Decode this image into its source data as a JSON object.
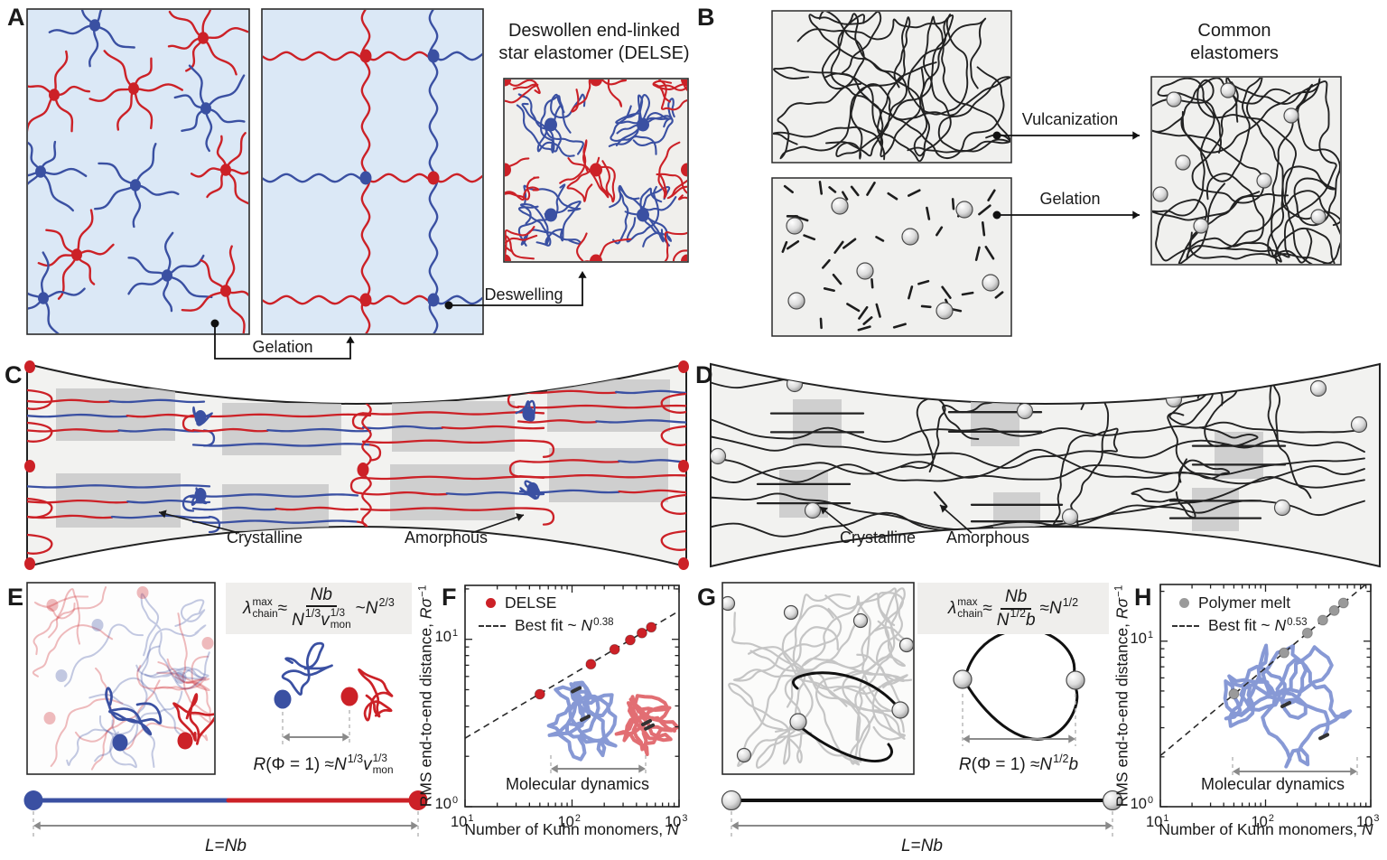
{
  "colors": {
    "red": "#cc2127",
    "blue": "#3a50a2",
    "light_blue_bg": "#dbe8f6",
    "panel_bg": "#f0f0ee",
    "specimen_bg": "#f2f2f0",
    "crystal_gray": "#c9c9c9",
    "chain_gray": "#c5c5c5",
    "md_blue": "#8193d3",
    "md_red": "#e0666b",
    "ink": "#1a1a1a"
  },
  "panels": {
    "a": {
      "letter": "A",
      "title": [
        "Deswollen end-linked",
        "star elastomer (DELSE)"
      ],
      "gelation": "Gelation",
      "deswelling": "Deswelling"
    },
    "b": {
      "letter": "B",
      "title": [
        "Common",
        "elastomers"
      ],
      "vulcanization": "Vulcanization",
      "gelation": "Gelation"
    },
    "c": {
      "letter": "C",
      "crystalline": "Crystalline",
      "amorphous": "Amorphous"
    },
    "d": {
      "letter": "D",
      "crystalline": "Crystalline",
      "amorphous": "Amorphous"
    },
    "e": {
      "letter": "E",
      "lambda_formula": [
        {
          "t": "λ",
          "i": true,
          "sup": "max",
          "sub": "chain"
        },
        {
          "t": " ≈ "
        },
        {
          "frac": {
            "num": [
              {
                "t": "Nb",
                "i": true
              }
            ],
            "den": [
              {
                "t": "N",
                "i": true,
                "sup": "1/3"
              },
              {
                "t": "v",
                "i": true,
                "sup": "1/3",
                "sub": "mon"
              }
            ]
          }
        },
        {
          "t": " ~ "
        },
        {
          "t": "N",
          "i": true,
          "sup": "2/3"
        }
      ],
      "r_formula": [
        {
          "t": "R",
          "i": true
        },
        {
          "t": "(Φ = 1) ≈ "
        },
        {
          "t": "N",
          "i": true,
          "sup": "1/3"
        },
        {
          "t": " "
        },
        {
          "t": "v",
          "i": true,
          "sup": "1/3",
          "sub": "mon"
        }
      ],
      "length_formula": [
        {
          "t": "L",
          "i": true
        },
        {
          "t": " = "
        },
        {
          "t": "Nb",
          "i": true
        }
      ]
    },
    "f": {
      "letter": "F"
    },
    "g": {
      "letter": "G",
      "lambda_formula": [
        {
          "t": "λ",
          "i": true,
          "sup": "max",
          "sub": "chain"
        },
        {
          "t": " ≈ "
        },
        {
          "frac": {
            "num": [
              {
                "t": "Nb",
                "i": true
              }
            ],
            "den": [
              {
                "t": "N",
                "i": true,
                "sup": "1/2"
              },
              {
                "t": "b",
                "i": true
              }
            ]
          }
        },
        {
          "t": " ≈ "
        },
        {
          "t": "N",
          "i": true,
          "sup": "1/2"
        }
      ],
      "r_formula": [
        {
          "t": "R",
          "i": true
        },
        {
          "t": "(Φ = 1) ≈ "
        },
        {
          "t": "N",
          "i": true,
          "sup": "1/2"
        },
        {
          "t": " "
        },
        {
          "t": "b",
          "i": true
        }
      ],
      "length_formula": [
        {
          "t": "L",
          "i": true
        },
        {
          "t": " = "
        },
        {
          "t": "Nb",
          "i": true
        }
      ]
    },
    "h": {
      "letter": "H"
    }
  },
  "chart_data": [
    {
      "id": "F",
      "type": "scatter",
      "log_x": true,
      "log_y": true,
      "title": "",
      "xlabel": "Number of Kuhn monomers, N",
      "ylabel": "RMS end-to-end distance, Rσ⁻¹",
      "xlabel_tokens": [
        {
          "t": "Number of Kuhn monomers, "
        },
        {
          "t": "N",
          "i": true
        }
      ],
      "ylabel_tokens": [
        {
          "t": "RMS end-to-end distance, "
        },
        {
          "t": "Rσ",
          "i": true
        },
        {
          "sup": "−1"
        }
      ],
      "xlim": [
        10,
        1000
      ],
      "ylim": [
        1,
        21
      ],
      "grid": false,
      "legend_position": "upper left",
      "series": [
        {
          "name": "DELSE",
          "color": "#cc2127",
          "x": [
            50,
            150,
            250,
            350,
            450,
            550
          ],
          "y": [
            4.7,
            7.1,
            8.7,
            9.9,
            10.9,
            11.8
          ]
        }
      ],
      "fit": {
        "label": "Best fit ~ N^0.38",
        "exponent": 0.38,
        "prefactor": 1.07,
        "style": "dashed",
        "label_tokens": [
          {
            "t": "Best fit ~ "
          },
          {
            "t": "N",
            "i": true,
            "sup": "0.38"
          }
        ]
      },
      "annotation": "Molecular dynamics"
    },
    {
      "id": "H",
      "type": "scatter",
      "log_x": true,
      "log_y": true,
      "title": "",
      "xlabel": "Number of Kuhn monomers, N",
      "ylabel": "RMS end-to-end distance, Rσ⁻¹",
      "xlabel_tokens": [
        {
          "t": "Number of Kuhn monomers, "
        },
        {
          "t": "N",
          "i": true
        }
      ],
      "ylabel_tokens": [
        {
          "t": "RMS end-to-end distance, "
        },
        {
          "t": "Rσ",
          "i": true
        },
        {
          "sup": "−1"
        }
      ],
      "xlim": [
        10,
        1000
      ],
      "ylim": [
        1,
        22
      ],
      "grid": false,
      "legend_position": "upper left",
      "series": [
        {
          "name": "Polymer melt",
          "color": "#9a9a9a",
          "x": [
            50,
            150,
            250,
            350,
            450,
            550
          ],
          "y": [
            4.8,
            8.5,
            11.2,
            13.4,
            15.3,
            17.0
          ]
        }
      ],
      "fit": {
        "label": "Best fit ~ N^0.53",
        "exponent": 0.53,
        "prefactor": 0.6,
        "style": "dashed",
        "label_tokens": [
          {
            "t": "Best fit ~ "
          },
          {
            "t": "N",
            "i": true,
            "sup": "0.53"
          }
        ]
      },
      "annotation": "Molecular dynamics"
    }
  ]
}
